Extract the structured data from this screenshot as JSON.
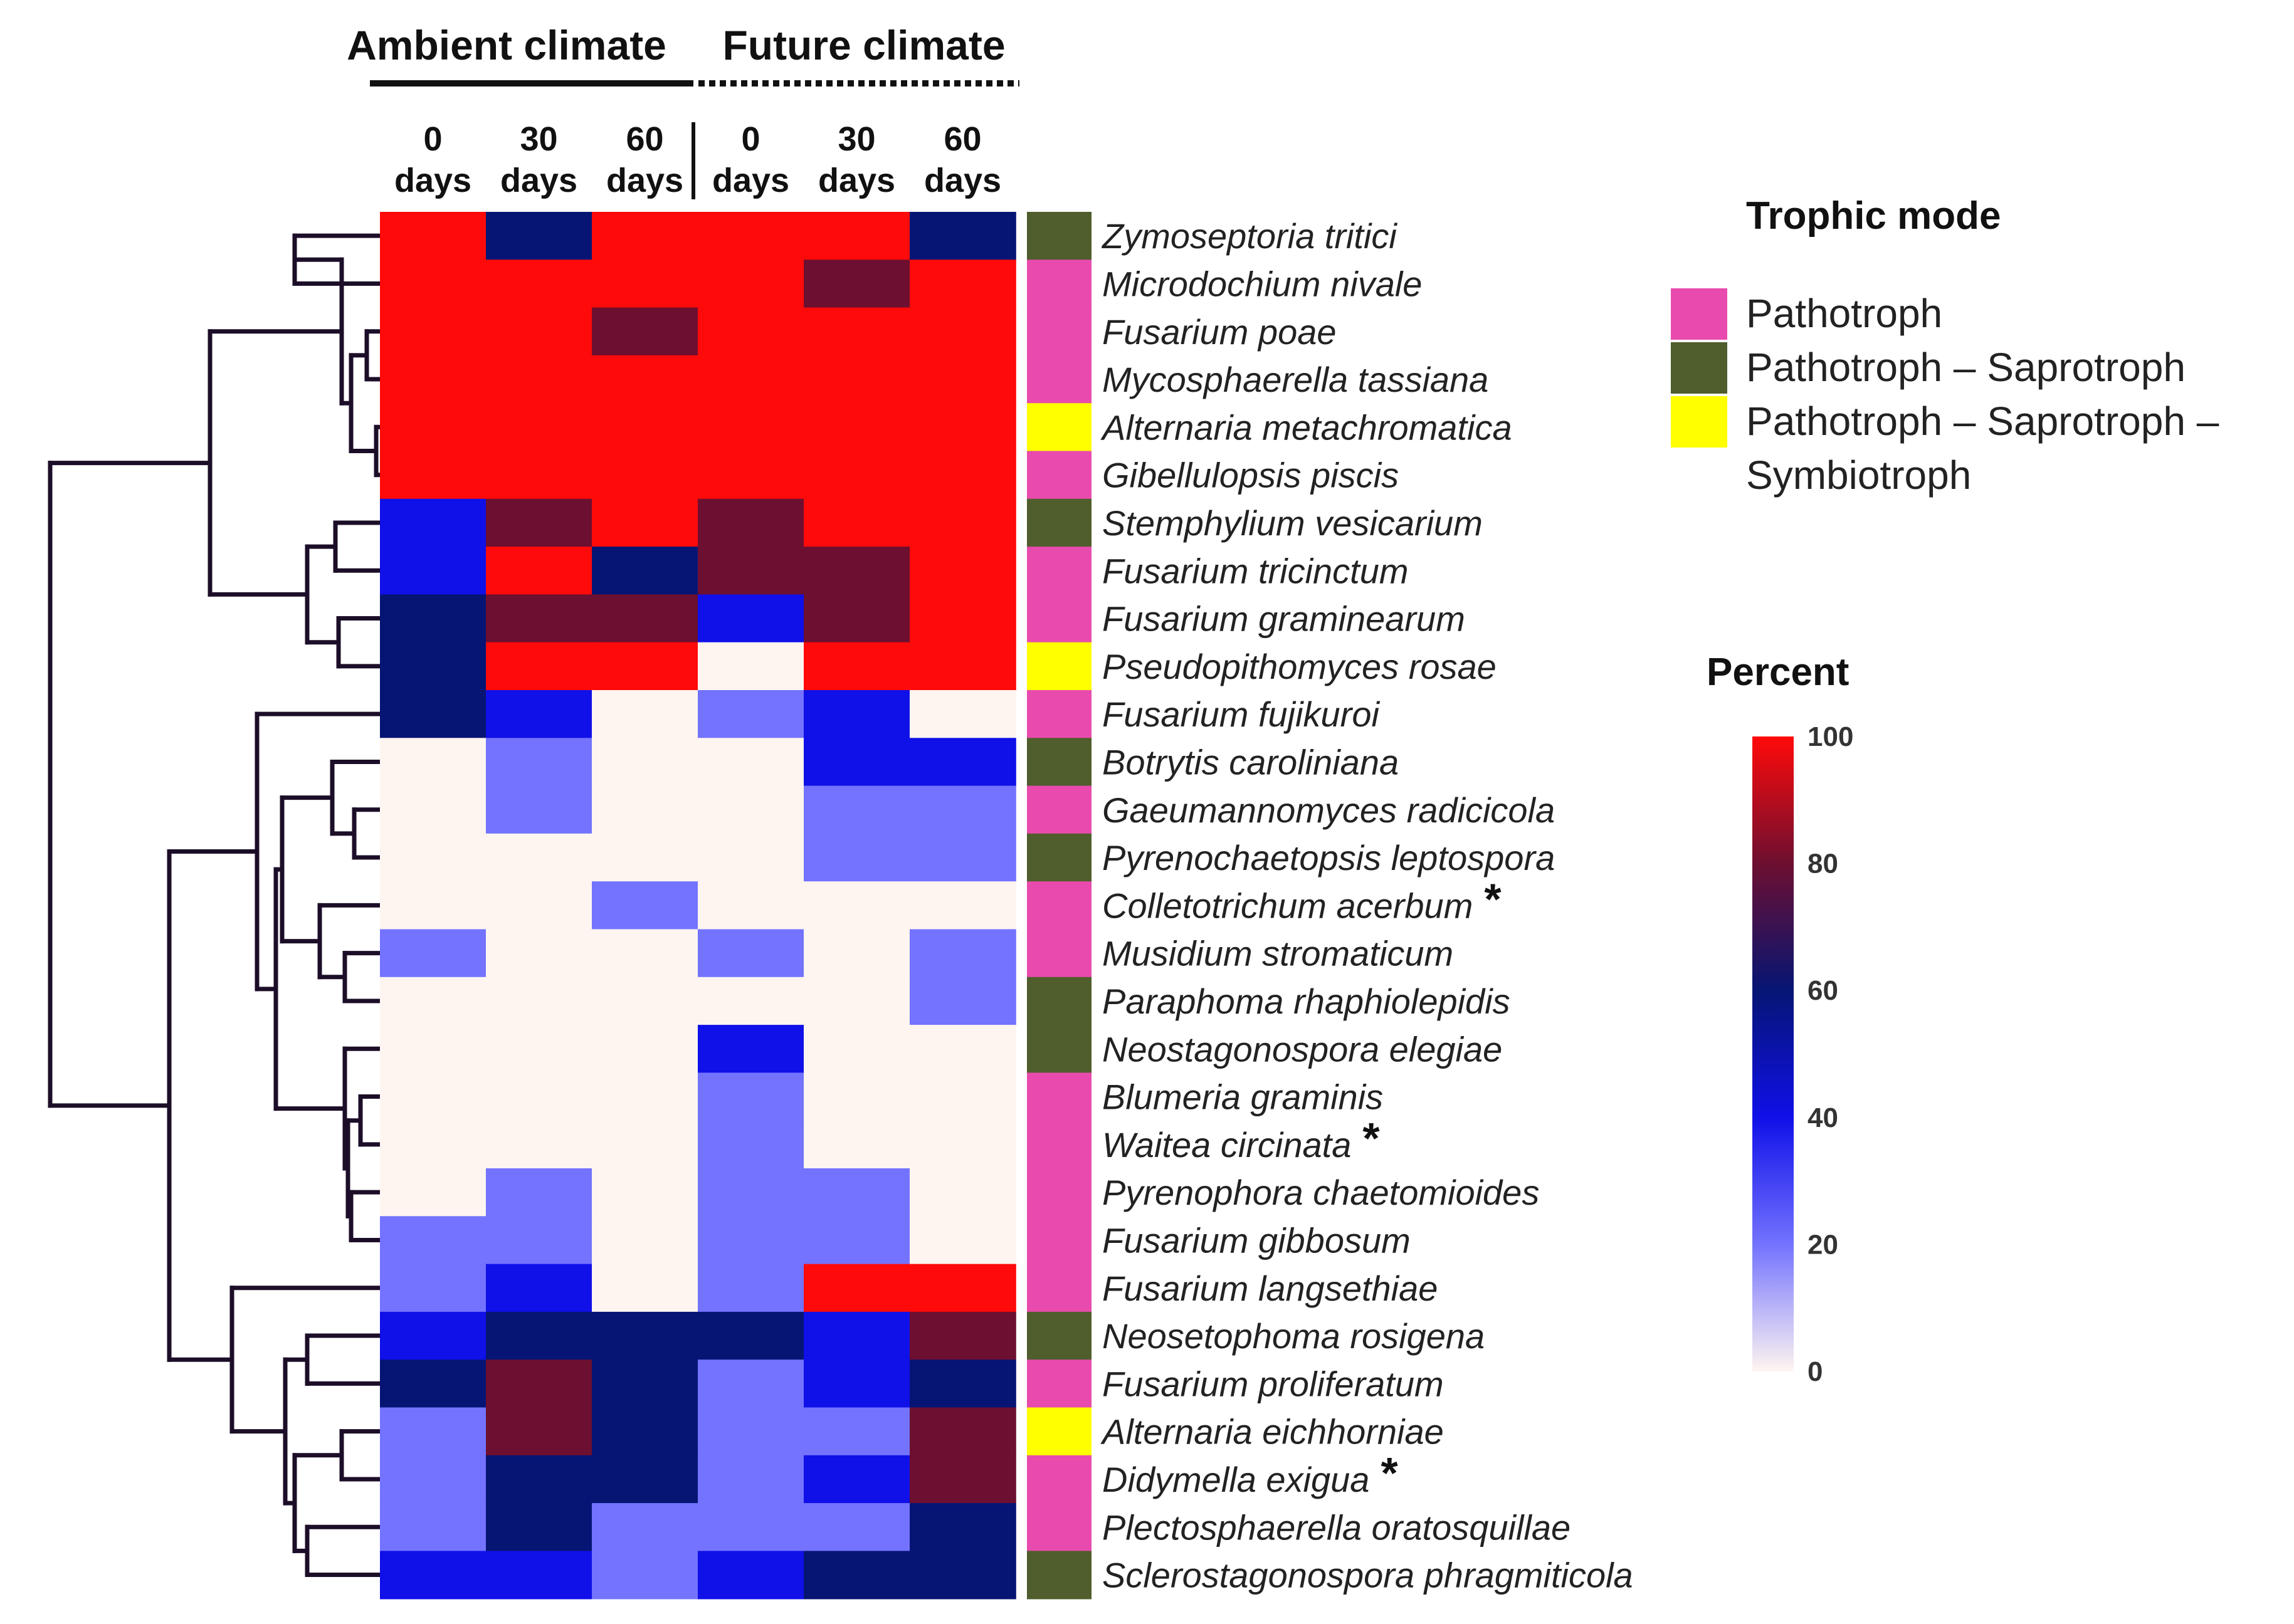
{
  "chart_data": {
    "type": "heatmap",
    "groups": [
      {
        "label": "Ambient climate",
        "line": "solid"
      },
      {
        "label": "Future climate",
        "line": "dotted"
      }
    ],
    "columns": [
      {
        "top": "0",
        "bottom": "days"
      },
      {
        "top": "30",
        "bottom": "days"
      },
      {
        "top": "60",
        "bottom": "days"
      },
      {
        "top": "0",
        "bottom": "days"
      },
      {
        "top": "30",
        "bottom": "days"
      },
      {
        "top": "60",
        "bottom": "days"
      }
    ],
    "rows": [
      {
        "name": "Zymoseptoria tritici",
        "trophic": "Pathotroph – Saprotroph",
        "marked": false
      },
      {
        "name": "Microdochium nivale",
        "trophic": "Pathotroph",
        "marked": false
      },
      {
        "name": "Fusarium poae",
        "trophic": "Pathotroph",
        "marked": false
      },
      {
        "name": "Mycosphaerella tassiana",
        "trophic": "Pathotroph",
        "marked": false
      },
      {
        "name": "Alternaria metachromatica",
        "trophic": "Pathotroph – Saprotroph – Symbiotroph",
        "marked": false
      },
      {
        "name": "Gibellulopsis piscis",
        "trophic": "Pathotroph",
        "marked": false
      },
      {
        "name": "Stemphylium vesicarium",
        "trophic": "Pathotroph – Saprotroph",
        "marked": false
      },
      {
        "name": "Fusarium tricinctum",
        "trophic": "Pathotroph",
        "marked": false
      },
      {
        "name": "Fusarium graminearum",
        "trophic": "Pathotroph",
        "marked": false
      },
      {
        "name": "Pseudopithomyces rosae",
        "trophic": "Pathotroph – Saprotroph – Symbiotroph",
        "marked": false
      },
      {
        "name": "Fusarium fujikuroi",
        "trophic": "Pathotroph",
        "marked": false
      },
      {
        "name": "Botrytis caroliniana",
        "trophic": "Pathotroph – Saprotroph",
        "marked": false
      },
      {
        "name": "Gaeumannomyces radicicola",
        "trophic": "Pathotroph",
        "marked": false
      },
      {
        "name": "Pyrenochaetopsis leptospora",
        "trophic": "Pathotroph – Saprotroph",
        "marked": false
      },
      {
        "name": "Colletotrichum acerbum",
        "trophic": "Pathotroph",
        "marked": true
      },
      {
        "name": "Musidium stromaticum",
        "trophic": "Pathotroph",
        "marked": false
      },
      {
        "name": "Paraphoma rhaphiolepidis",
        "trophic": "Pathotroph – Saprotroph",
        "marked": false
      },
      {
        "name": "Neostagonospora elegiae",
        "trophic": "Pathotroph – Saprotroph",
        "marked": false
      },
      {
        "name": "Blumeria graminis",
        "trophic": "Pathotroph",
        "marked": false
      },
      {
        "name": "Waitea circinata",
        "trophic": "Pathotroph",
        "marked": true
      },
      {
        "name": "Pyrenophora chaetomioides",
        "trophic": "Pathotroph",
        "marked": false
      },
      {
        "name": "Fusarium gibbosum",
        "trophic": "Pathotroph",
        "marked": false
      },
      {
        "name": "Fusarium langsethiae",
        "trophic": "Pathotroph",
        "marked": false
      },
      {
        "name": "Neosetophoma rosigena",
        "trophic": "Pathotroph – Saprotroph",
        "marked": false
      },
      {
        "name": "Fusarium proliferatum",
        "trophic": "Pathotroph",
        "marked": false
      },
      {
        "name": "Alternaria eichhorniae",
        "trophic": "Pathotroph – Saprotroph – Symbiotroph",
        "marked": false
      },
      {
        "name": "Didymella exigua",
        "trophic": "Pathotroph",
        "marked": true
      },
      {
        "name": "Plectosphaerella oratosquillae",
        "trophic": "Pathotroph",
        "marked": false
      },
      {
        "name": "Sclerostagonospora phragmiticola",
        "trophic": "Pathotroph – Saprotroph",
        "marked": false
      }
    ],
    "values": [
      [
        100,
        60,
        100,
        100,
        100,
        60
      ],
      [
        100,
        100,
        100,
        100,
        80,
        100
      ],
      [
        100,
        100,
        80,
        100,
        100,
        100
      ],
      [
        100,
        100,
        100,
        100,
        100,
        100
      ],
      [
        100,
        100,
        100,
        100,
        100,
        100
      ],
      [
        100,
        100,
        100,
        100,
        100,
        100
      ],
      [
        40,
        80,
        100,
        80,
        100,
        100
      ],
      [
        40,
        100,
        60,
        80,
        80,
        100
      ],
      [
        60,
        80,
        80,
        40,
        80,
        100
      ],
      [
        60,
        100,
        100,
        0,
        100,
        100
      ],
      [
        60,
        40,
        0,
        20,
        40,
        0
      ],
      [
        0,
        20,
        0,
        0,
        40,
        40
      ],
      [
        0,
        20,
        0,
        0,
        20,
        20
      ],
      [
        0,
        0,
        0,
        0,
        20,
        20
      ],
      [
        0,
        0,
        20,
        0,
        0,
        0
      ],
      [
        20,
        0,
        0,
        20,
        0,
        20
      ],
      [
        0,
        0,
        0,
        0,
        0,
        20
      ],
      [
        0,
        0,
        0,
        40,
        0,
        0
      ],
      [
        0,
        0,
        0,
        20,
        0,
        0
      ],
      [
        0,
        0,
        0,
        20,
        0,
        0
      ],
      [
        0,
        20,
        0,
        20,
        20,
        0
      ],
      [
        20,
        20,
        0,
        20,
        20,
        0
      ],
      [
        20,
        40,
        0,
        20,
        100,
        100
      ],
      [
        40,
        60,
        60,
        60,
        40,
        80
      ],
      [
        60,
        80,
        60,
        20,
        40,
        60
      ],
      [
        20,
        80,
        60,
        20,
        20,
        80
      ],
      [
        20,
        60,
        60,
        20,
        40,
        80
      ],
      [
        20,
        60,
        20,
        20,
        20,
        60
      ],
      [
        40,
        40,
        20,
        40,
        60,
        60
      ]
    ],
    "trophic_legend": {
      "title": "Trophic mode",
      "items": [
        {
          "label": "Pathotroph",
          "color": "#e84bad"
        },
        {
          "label": "Pathotroph – Saprotroph",
          "color": "#4f5e2c"
        },
        {
          "label_lines": [
            "Pathotroph – Saprotroph –",
            "Symbiotroph"
          ],
          "color": "#ffff00"
        }
      ]
    },
    "colorbar": {
      "title": "Percent",
      "range": [
        0,
        100
      ],
      "ticks": [
        "100",
        "80",
        "60",
        "40",
        "20",
        "0"
      ],
      "stops": [
        {
          "value": 0,
          "color": "#fff5f0"
        },
        {
          "value": 20,
          "color": "#7373ff"
        },
        {
          "value": 40,
          "color": "#1010e8"
        },
        {
          "value": 60,
          "color": "#061574"
        },
        {
          "value": 80,
          "color": "#6d0f30"
        },
        {
          "value": 100,
          "color": "#ff0a0a"
        }
      ]
    }
  }
}
